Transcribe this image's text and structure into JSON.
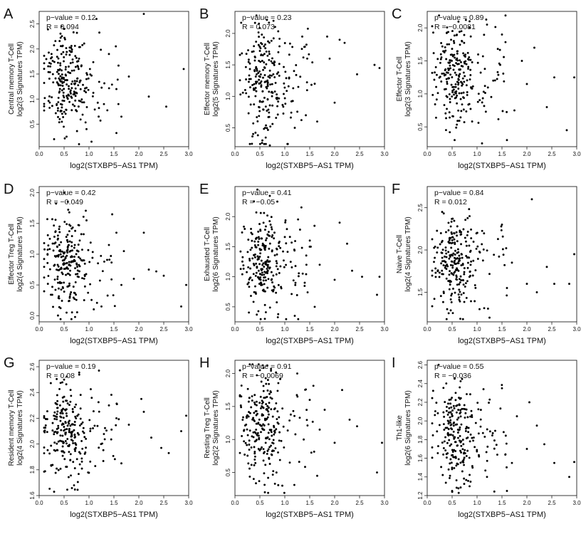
{
  "chart_data": [
    {
      "panel": "A",
      "type": "scatter",
      "ylabel_line1": "Central memory T-Cell",
      "ylabel_line2": "log2(3 Signatures TPM)",
      "xlabel": "log2(STXBP5−AS1 TPM)",
      "p_text": "p−value = 0.12",
      "r_text": "R = 0.094",
      "xlim": [
        0,
        3
      ],
      "ylim": [
        0.05,
        2.75
      ],
      "xticks": [
        0.0,
        0.5,
        1.0,
        1.5,
        2.0,
        2.5,
        3.0
      ],
      "yticks": [
        0.5,
        1.0,
        1.5,
        2.0,
        2.5
      ],
      "ytick_labels": [
        "0.5",
        "1.0",
        "1.5",
        "2.0",
        "2.5"
      ],
      "cluster_center": [
        1.35,
        0.45
      ],
      "seed": 11,
      "outliers": [
        [
          2.1,
          2.7
        ],
        [
          1.65,
          0.65
        ],
        [
          1.8,
          1.45
        ],
        [
          2.2,
          1.05
        ],
        [
          2.55,
          0.85
        ],
        [
          2.9,
          1.6
        ],
        [
          1.05,
          0.15
        ],
        [
          0.8,
          0.1
        ],
        [
          0.3,
          0.2
        ],
        [
          1.4,
          1.9
        ],
        [
          1.55,
          1.2
        ],
        [
          0.95,
          0.4
        ],
        [
          1.15,
          2.6
        ],
        [
          0.45,
          2.45
        ],
        [
          0.55,
          0.25
        ],
        [
          1.3,
          0.9
        ]
      ]
    },
    {
      "panel": "B",
      "type": "scatter",
      "ylabel_line1": "Effector memory T-Cell",
      "ylabel_line2": "log2(5 Signatures TPM)",
      "xlabel": "log2(STXBP5−AS1 TPM)",
      "p_text": "p−value = 0.23",
      "r_text": "R = 0.073",
      "xlim": [
        0,
        3
      ],
      "ylim": [
        0.2,
        2.35
      ],
      "xticks": [
        0.0,
        0.5,
        1.0,
        1.5,
        2.0,
        2.5,
        3.0
      ],
      "yticks": [
        0.5,
        1.0,
        1.5,
        2.0
      ],
      "ytick_labels": [
        "0.5",
        "1.0",
        "1.5",
        "2.0"
      ],
      "cluster_center": [
        1.25,
        0.4
      ],
      "seed": 23,
      "outliers": [
        [
          2.2,
          1.85
        ],
        [
          2.1,
          1.9
        ],
        [
          1.9,
          1.6
        ],
        [
          2.45,
          1.35
        ],
        [
          2.8,
          1.5
        ],
        [
          2.9,
          1.45
        ],
        [
          1.65,
          0.6
        ],
        [
          2.0,
          0.9
        ],
        [
          1.85,
          1.95
        ],
        [
          1.45,
          1.6
        ],
        [
          1.6,
          1.2
        ],
        [
          0.7,
          0.22
        ],
        [
          0.55,
          0.3
        ],
        [
          1.2,
          0.5
        ],
        [
          1.35,
          1.95
        ]
      ]
    },
    {
      "panel": "C",
      "type": "scatter",
      "ylabel_line1": "Effector T-Cell",
      "ylabel_line2": "log2(3 Signatures TPM)",
      "xlabel": "log2(STXBP5−AS1 TPM)",
      "p_text": "p−value = 0.89",
      "r_text": "R = −0.0081",
      "xlim": [
        0,
        3
      ],
      "ylim": [
        0.2,
        2.25
      ],
      "xticks": [
        0.0,
        0.5,
        1.0,
        1.5,
        2.0,
        2.5,
        3.0
      ],
      "yticks": [
        0.5,
        1.0,
        1.5,
        2.0
      ],
      "ytick_labels": [
        "0.5",
        "1.0",
        "1.5",
        "2.0"
      ],
      "cluster_center": [
        1.3,
        0.4
      ],
      "seed": 37,
      "outliers": [
        [
          2.15,
          1.7
        ],
        [
          2.0,
          1.15
        ],
        [
          2.55,
          1.25
        ],
        [
          2.95,
          1.25
        ],
        [
          2.4,
          0.8
        ],
        [
          2.8,
          0.45
        ],
        [
          1.6,
          0.3
        ],
        [
          1.75,
          0.75
        ],
        [
          1.1,
          0.25
        ],
        [
          0.55,
          0.3
        ],
        [
          1.5,
          1.9
        ],
        [
          1.2,
          2.05
        ],
        [
          0.85,
          2.1
        ],
        [
          1.9,
          1.5
        ]
      ]
    },
    {
      "panel": "D",
      "type": "scatter",
      "ylabel_line1": "Effector Treg T-Cell",
      "ylabel_line2": "log2(4 Signatures TPM)",
      "xlabel": "log2(STXBP5−AS1 TPM)",
      "p_text": "p−value = 0.42",
      "r_text": "R = −0.049",
      "xlim": [
        0,
        3
      ],
      "ylim": [
        -0.1,
        2.1
      ],
      "xticks": [
        0.0,
        0.5,
        1.0,
        1.5,
        2.0,
        2.5,
        3.0
      ],
      "yticks": [
        0.0,
        0.5,
        1.0,
        1.5,
        2.0
      ],
      "ytick_labels": [
        "0.0",
        "0.5",
        "1.0",
        "1.5",
        "2.0"
      ],
      "cluster_center": [
        0.85,
        0.4
      ],
      "seed": 41,
      "outliers": [
        [
          2.2,
          0.75
        ],
        [
          2.35,
          0.72
        ],
        [
          2.5,
          0.65
        ],
        [
          2.1,
          1.35
        ],
        [
          1.9,
          0.6
        ],
        [
          2.85,
          0.15
        ],
        [
          2.95,
          0.5
        ],
        [
          1.65,
          0.5
        ],
        [
          1.55,
          1.35
        ],
        [
          1.4,
          1.15
        ],
        [
          0.5,
          2.0
        ],
        [
          0.95,
          1.55
        ],
        [
          1.25,
          0.15
        ],
        [
          0.55,
          0.05
        ],
        [
          1.7,
          1.05
        ]
      ]
    },
    {
      "panel": "E",
      "type": "scatter",
      "ylabel_line1": "Exhausted T-Cell",
      "ylabel_line2": "log2(6 Signatures TPM)",
      "xlabel": "log2(STXBP5−AS1 TPM)",
      "p_text": "p−value = 0.41",
      "r_text": "R = −0.05",
      "xlim": [
        0,
        3
      ],
      "ylim": [
        0.25,
        2.5
      ],
      "xticks": [
        0.0,
        0.5,
        1.0,
        1.5,
        2.0,
        2.5,
        3.0
      ],
      "yticks": [
        0.5,
        1.0,
        1.5,
        2.0
      ],
      "ytick_labels": [
        "0.5",
        "1.0",
        "1.5",
        "2.0"
      ],
      "cluster_center": [
        1.25,
        0.4
      ],
      "seed": 53,
      "outliers": [
        [
          2.1,
          1.9
        ],
        [
          2.25,
          1.55
        ],
        [
          2.35,
          1.1
        ],
        [
          2.55,
          1.0
        ],
        [
          2.85,
          0.7
        ],
        [
          2.9,
          1.0
        ],
        [
          2.0,
          0.95
        ],
        [
          1.6,
          0.5
        ],
        [
          1.4,
          0.9
        ],
        [
          1.5,
          1.5
        ],
        [
          0.85,
          2.25
        ],
        [
          1.7,
          1.2
        ],
        [
          0.6,
          0.3
        ],
        [
          1.2,
          0.35
        ],
        [
          0.45,
          2.45
        ]
      ]
    },
    {
      "panel": "F",
      "type": "scatter",
      "ylabel_line1": "Naive T-Cell",
      "ylabel_line2": "log2(4 Signatures TPM)",
      "xlabel": "log2(STXBP5−AS1 TPM)",
      "p_text": "p−value = 0.84",
      "r_text": "R = 0.012",
      "xlim": [
        0,
        3
      ],
      "ylim": [
        1.15,
        2.75
      ],
      "xticks": [
        0.0,
        0.5,
        1.0,
        1.5,
        2.0,
        2.5,
        3.0
      ],
      "yticks": [
        1.5,
        2.0,
        2.5
      ],
      "ytick_labels": [
        "1.5",
        "2.0",
        "2.5"
      ],
      "cluster_center": [
        1.85,
        0.27
      ],
      "seed": 61,
      "outliers": [
        [
          2.1,
          2.6
        ],
        [
          2.0,
          1.6
        ],
        [
          2.2,
          1.5
        ],
        [
          2.4,
          1.8
        ],
        [
          2.55,
          1.6
        ],
        [
          2.85,
          1.6
        ],
        [
          2.95,
          1.95
        ],
        [
          1.6,
          1.55
        ],
        [
          1.5,
          2.3
        ],
        [
          1.25,
          1.2
        ],
        [
          1.05,
          1.3
        ],
        [
          0.4,
          1.3
        ],
        [
          0.85,
          2.4
        ],
        [
          1.7,
          1.85
        ],
        [
          0.3,
          2.45
        ]
      ]
    },
    {
      "panel": "G",
      "type": "scatter",
      "ylabel_line1": "Resident memory T-Cell",
      "ylabel_line2": "log2(4 Signatures TPM)",
      "xlabel": "log2(STXBP5−AS1 TPM)",
      "p_text": "p−value = 0.19",
      "r_text": "R = 0.08",
      "xlim": [
        0,
        3
      ],
      "ylim": [
        1.6,
        2.65
      ],
      "xticks": [
        0.0,
        0.5,
        1.0,
        1.5,
        2.0,
        2.5,
        3.0
      ],
      "yticks": [
        1.6,
        1.8,
        2.0,
        2.2,
        2.4,
        2.6
      ],
      "ytick_labels": [
        "1.6",
        "1.8",
        "2.0",
        "2.2",
        "2.4",
        "2.6"
      ],
      "cluster_center": [
        2.1,
        0.18
      ],
      "seed": 71,
      "outliers": [
        [
          2.05,
          2.35
        ],
        [
          2.1,
          2.25
        ],
        [
          2.25,
          2.05
        ],
        [
          2.45,
          1.97
        ],
        [
          2.6,
          1.93
        ],
        [
          2.85,
          2.1
        ],
        [
          2.95,
          2.22
        ],
        [
          1.65,
          1.85
        ],
        [
          1.55,
          2.2
        ],
        [
          1.4,
          2.3
        ],
        [
          0.3,
          1.63
        ],
        [
          0.7,
          1.68
        ],
        [
          1.2,
          2.57
        ],
        [
          0.5,
          2.5
        ],
        [
          1.8,
          2.15
        ]
      ]
    },
    {
      "panel": "H",
      "type": "scatter",
      "ylabel_line1": "Resting Treg T-Cell",
      "ylabel_line2": "log2(2 Signatures TPM)",
      "xlabel": "log2(STXBP5−AS1 TPM)",
      "p_text": "p−value = 0.91",
      "r_text": "R = −0.0069",
      "xlim": [
        0,
        3
      ],
      "ylim": [
        0.15,
        2.2
      ],
      "xticks": [
        0.0,
        0.5,
        1.0,
        1.5,
        2.0,
        2.5,
        3.0
      ],
      "yticks": [
        0.5,
        1.0,
        1.5,
        2.0
      ],
      "ytick_labels": [
        "0.5",
        "1.0",
        "1.5",
        "2.0"
      ],
      "cluster_center": [
        1.2,
        0.42
      ],
      "seed": 83,
      "outliers": [
        [
          2.15,
          1.75
        ],
        [
          2.3,
          1.3
        ],
        [
          2.45,
          1.2
        ],
        [
          2.85,
          0.5
        ],
        [
          2.95,
          0.95
        ],
        [
          2.0,
          0.95
        ],
        [
          1.65,
          0.45
        ],
        [
          1.7,
          1.15
        ],
        [
          1.5,
          1.6
        ],
        [
          1.8,
          1.45
        ],
        [
          0.6,
          0.2
        ],
        [
          0.95,
          0.3
        ],
        [
          1.25,
          2.0
        ],
        [
          0.5,
          2.05
        ],
        [
          1.1,
          0.65
        ]
      ]
    },
    {
      "panel": "I",
      "type": "scatter",
      "ylabel_line1": "Th1-like",
      "ylabel_line2": "log2(6 Signatures TPM)",
      "xlabel": "log2(STXBP5−AS1 TPM)",
      "p_text": "p−value = 0.55",
      "r_text": "R = −0.036",
      "xlim": [
        0,
        3
      ],
      "ylim": [
        1.2,
        2.65
      ],
      "xticks": [
        0.0,
        0.5,
        1.0,
        1.5,
        2.0,
        2.5,
        3.0
      ],
      "yticks": [
        1.2,
        1.4,
        1.6,
        1.8,
        2.0,
        2.2,
        2.4,
        2.6
      ],
      "ytick_labels": [
        "1.2",
        "1.4",
        "1.6",
        "1.8",
        "2.0",
        "2.2",
        "2.4",
        "2.6"
      ],
      "cluster_center": [
        1.85,
        0.27
      ],
      "seed": 97,
      "outliers": [
        [
          2.05,
          2.2
        ],
        [
          2.2,
          1.95
        ],
        [
          2.35,
          1.75
        ],
        [
          2.55,
          1.55
        ],
        [
          2.85,
          1.4
        ],
        [
          2.95,
          1.56
        ],
        [
          2.0,
          1.7
        ],
        [
          1.6,
          1.25
        ],
        [
          1.7,
          1.55
        ],
        [
          1.5,
          2.35
        ],
        [
          1.2,
          1.4
        ],
        [
          0.5,
          1.25
        ],
        [
          0.7,
          2.45
        ],
        [
          0.85,
          1.3
        ],
        [
          1.8,
          2.05
        ]
      ]
    }
  ]
}
